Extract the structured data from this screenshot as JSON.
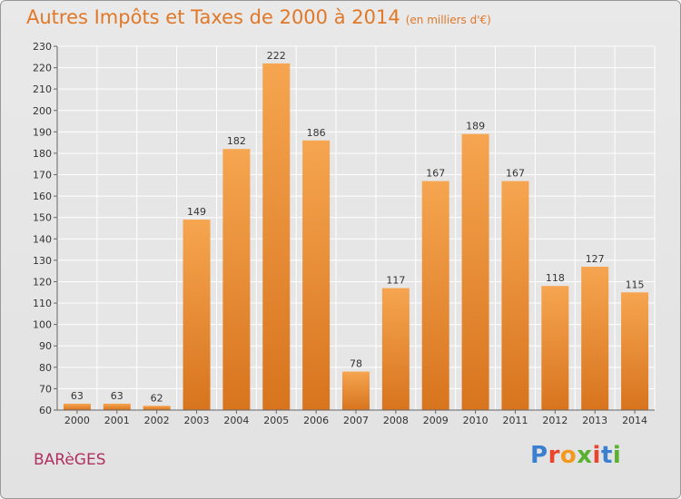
{
  "header": {
    "title": "Autres Impôts et Taxes de 2000 à 2014",
    "subtitle": "(en milliers d'€)"
  },
  "commune": "BARèGES",
  "logo": {
    "text": "Proxiti",
    "colors": [
      "#3b7fd0",
      "#e8442e",
      "#f39a1e",
      "#5ab030",
      "#e8442e",
      "#3b7fd0",
      "#5ab030"
    ]
  },
  "chart_data": {
    "type": "bar",
    "categories": [
      "2000",
      "2001",
      "2002",
      "2003",
      "2004",
      "2005",
      "2006",
      "2007",
      "2008",
      "2009",
      "2010",
      "2011",
      "2012",
      "2013",
      "2014"
    ],
    "values": [
      63,
      63,
      62,
      149,
      182,
      222,
      186,
      78,
      117,
      167,
      189,
      167,
      118,
      127,
      115
    ],
    "ylim": [
      60,
      230
    ],
    "yticks": [
      60,
      70,
      80,
      90,
      100,
      110,
      120,
      130,
      140,
      150,
      160,
      170,
      180,
      190,
      200,
      210,
      220,
      230
    ],
    "grid": true,
    "bar_color": "#f0923a"
  }
}
